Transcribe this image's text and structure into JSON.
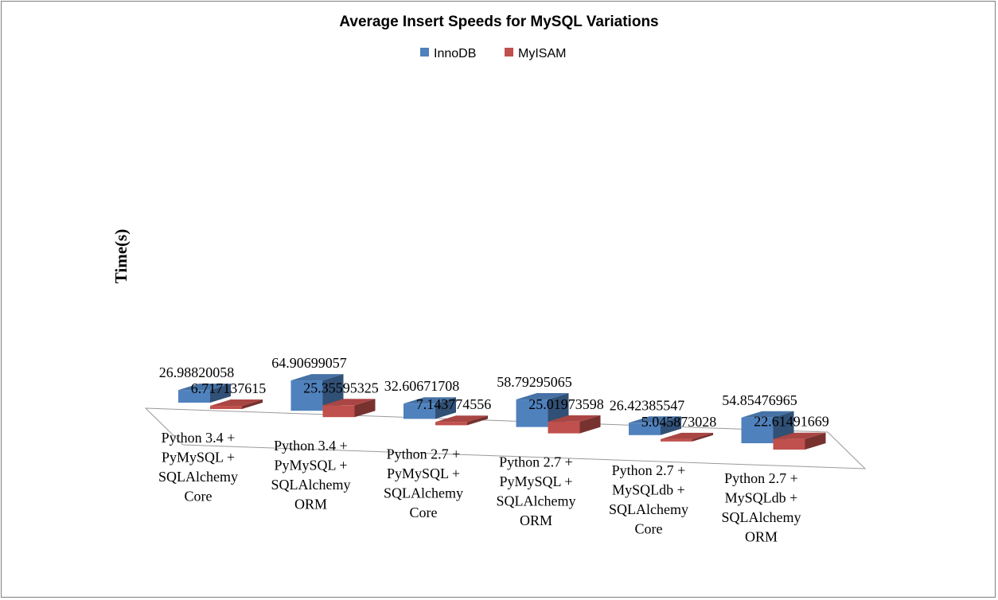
{
  "chart_data": {
    "type": "bar",
    "title": "Average Insert Speeds for MySQL Variations",
    "ylabel": "Time(s)",
    "xlabel": "",
    "legend_position": "top",
    "grid": false,
    "ylim": [
      0,
      70
    ],
    "categories": [
      [
        "Python 3.4 +",
        "PyMySQL +",
        "SQLAlchemy",
        "Core"
      ],
      [
        "Python 3.4 +",
        "PyMySQL +",
        "SQLAlchemy",
        "ORM"
      ],
      [
        "Python 2.7 +",
        "PyMySQL +",
        "SQLAlchemy",
        "Core"
      ],
      [
        "Python 2.7 +",
        "PyMySQL +",
        "SQLAlchemy",
        "ORM"
      ],
      [
        "Python 2.7 +",
        "MySQLdb +",
        "SQLAlchemy",
        "Core"
      ],
      [
        "Python 2.7 +",
        "MySQLdb +",
        "SQLAlchemy",
        "ORM"
      ]
    ],
    "series": [
      {
        "name": "InnoDB",
        "color": "#4f81bd",
        "values": [
          26.98820058,
          64.90699057,
          32.60671708,
          58.79295065,
          26.42385547,
          54.85476965
        ],
        "labels": [
          "26.98820058",
          "64.90699057",
          "32.60671708",
          "58.79295065",
          "26.42385547",
          "54.85476965"
        ]
      },
      {
        "name": "MyISAM",
        "color": "#c0504d",
        "values": [
          6.717137615,
          25.35595325,
          7.143774556,
          25.01973598,
          5.045873028,
          22.61491669
        ],
        "labels": [
          "6.717137615",
          "25.35595325",
          "7.143774556",
          "25.01973598",
          "5.045873028",
          "22.61491669"
        ]
      }
    ]
  }
}
